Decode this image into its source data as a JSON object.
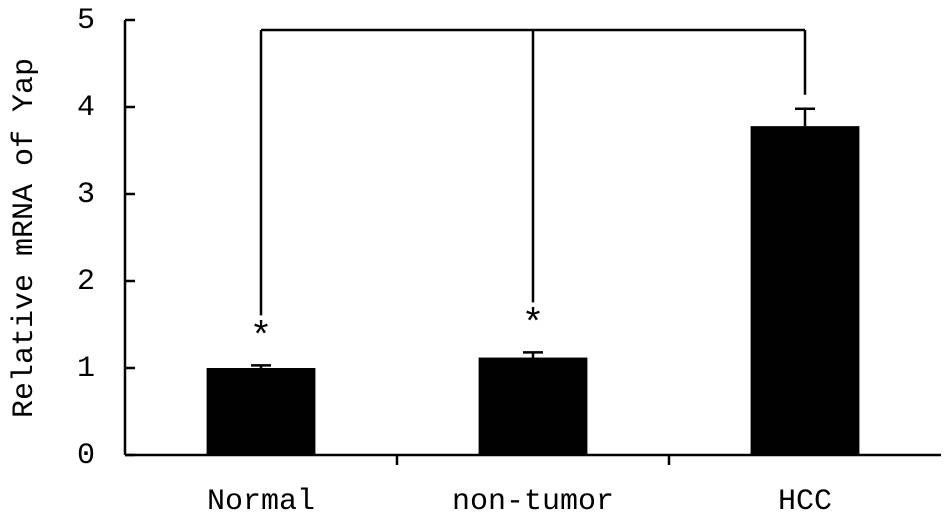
{
  "chart_data": {
    "type": "bar",
    "y_label": "Relative mRNA of Yap",
    "categories": [
      "Normal",
      "non-tumor",
      "HCC"
    ],
    "values": [
      1.0,
      1.12,
      3.78
    ],
    "errors": [
      0.03,
      0.06,
      0.2
    ],
    "value_annotations": [
      "*",
      "*",
      null
    ],
    "color": "#000000",
    "ylim": [
      0,
      5
    ],
    "yticks": [
      0,
      1,
      2,
      3,
      4,
      5
    ],
    "grid": false
  }
}
